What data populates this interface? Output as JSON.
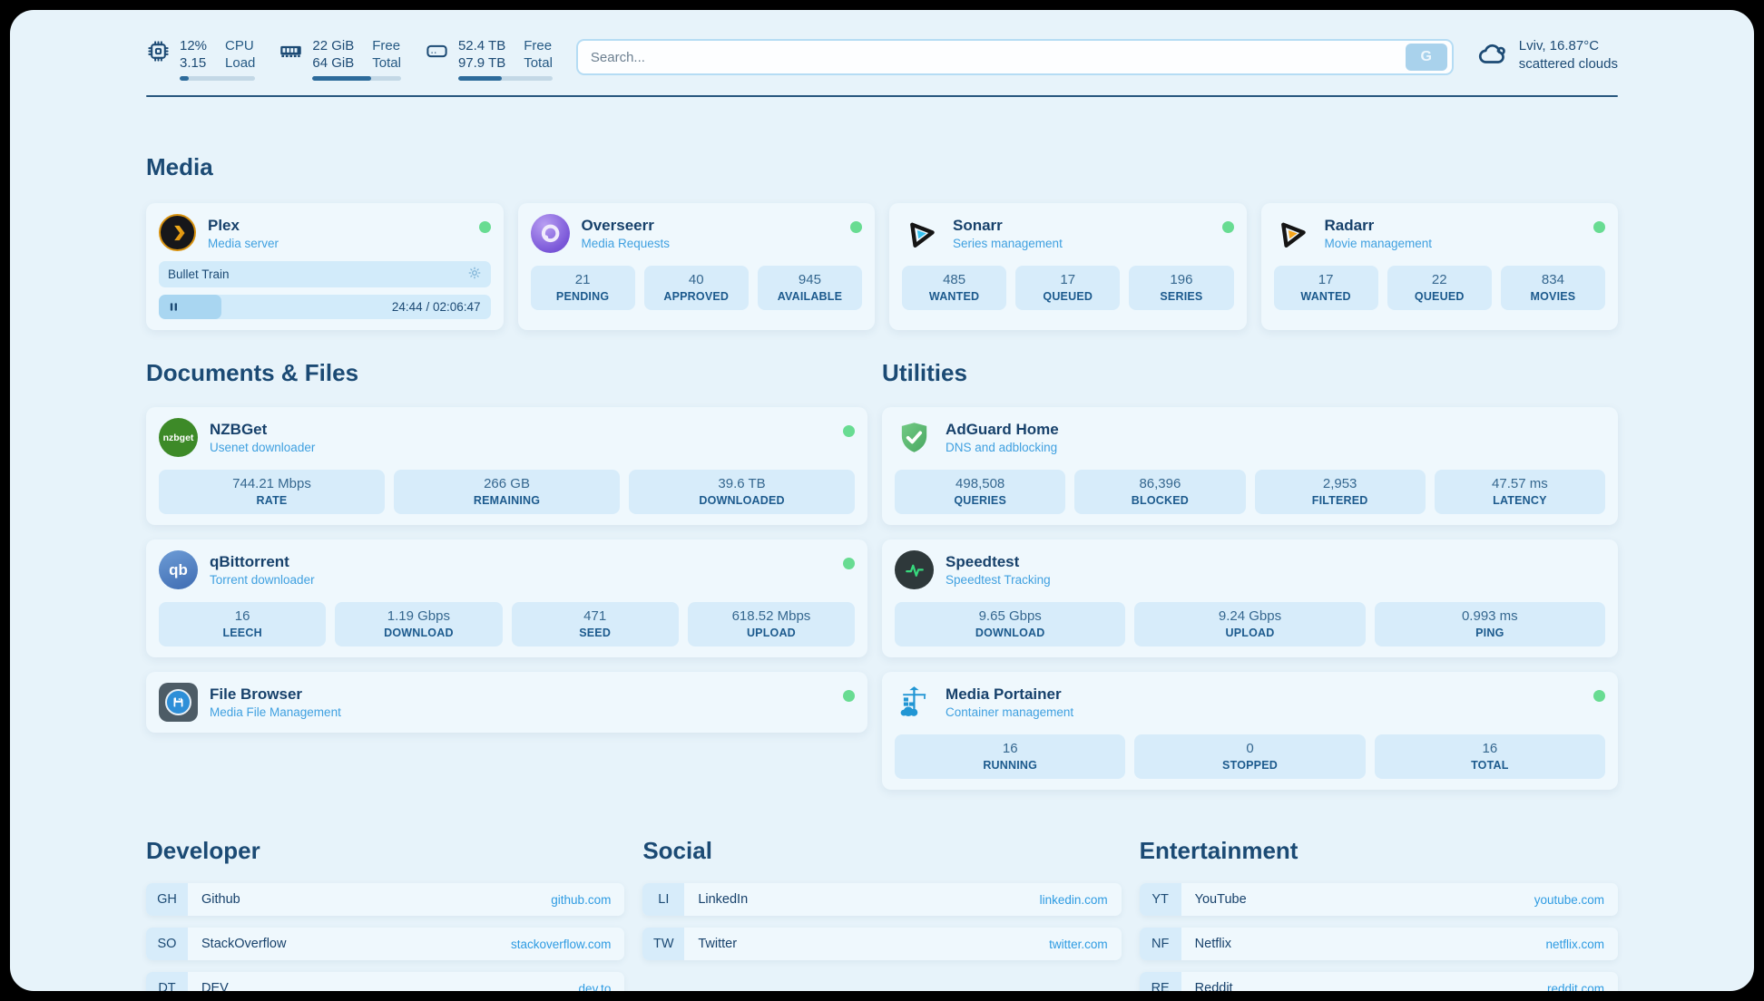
{
  "topbar": {
    "stats": [
      {
        "id": "cpu",
        "values": [
          "12%",
          "3.15"
        ],
        "labels": [
          "CPU",
          "Load"
        ],
        "progress": 12
      },
      {
        "id": "ram",
        "values": [
          "22 GiB",
          "64 GiB"
        ],
        "labels": [
          "Free",
          "Total"
        ],
        "progress": 66
      },
      {
        "id": "disk",
        "values": [
          "52.4 TB",
          "97.9 TB"
        ],
        "labels": [
          "Free",
          "Total"
        ],
        "progress": 46
      }
    ],
    "search": {
      "placeholder": "Search...",
      "button": "G"
    },
    "weather": {
      "location": "Lviv, 16.87°C",
      "condition": "scattered clouds"
    }
  },
  "media": {
    "title": "Media",
    "plex": {
      "name": "Plex",
      "subtitle": "Media server",
      "now_playing": {
        "title": "Bullet Train",
        "time": "24:44 / 02:06:47",
        "progress": 19
      }
    },
    "overseerr": {
      "name": "Overseerr",
      "subtitle": "Media Requests",
      "stats": [
        {
          "value": "21",
          "label": "PENDING"
        },
        {
          "value": "40",
          "label": "APPROVED"
        },
        {
          "value": "945",
          "label": "AVAILABLE"
        }
      ]
    },
    "sonarr": {
      "name": "Sonarr",
      "subtitle": "Series management",
      "stats": [
        {
          "value": "485",
          "label": "WANTED"
        },
        {
          "value": "17",
          "label": "QUEUED"
        },
        {
          "value": "196",
          "label": "SERIES"
        }
      ]
    },
    "radarr": {
      "name": "Radarr",
      "subtitle": "Movie management",
      "stats": [
        {
          "value": "17",
          "label": "WANTED"
        },
        {
          "value": "22",
          "label": "QUEUED"
        },
        {
          "value": "834",
          "label": "MOVIES"
        }
      ]
    }
  },
  "documents": {
    "title": "Documents & Files",
    "nzbget": {
      "name": "NZBGet",
      "subtitle": "Usenet downloader",
      "logo_text": "nzbget",
      "stats": [
        {
          "value": "744.21 Mbps",
          "label": "RATE"
        },
        {
          "value": "266 GB",
          "label": "REMAINING"
        },
        {
          "value": "39.6 TB",
          "label": "DOWNLOADED"
        }
      ]
    },
    "qbittorrent": {
      "name": "qBittorrent",
      "subtitle": "Torrent downloader",
      "logo_text": "qb",
      "stats": [
        {
          "value": "16",
          "label": "LEECH"
        },
        {
          "value": "1.19 Gbps",
          "label": "DOWNLOAD"
        },
        {
          "value": "471",
          "label": "SEED"
        },
        {
          "value": "618.52 Mbps",
          "label": "UPLOAD"
        }
      ]
    },
    "filebrowser": {
      "name": "File Browser",
      "subtitle": "Media File Management"
    }
  },
  "utilities": {
    "title": "Utilities",
    "adguard": {
      "name": "AdGuard Home",
      "subtitle": "DNS and adblocking",
      "stats": [
        {
          "value": "498,508",
          "label": "QUERIES"
        },
        {
          "value": "86,396",
          "label": "BLOCKED"
        },
        {
          "value": "2,953",
          "label": "FILTERED"
        },
        {
          "value": "47.57 ms",
          "label": "LATENCY"
        }
      ]
    },
    "speedtest": {
      "name": "Speedtest",
      "subtitle": "Speedtest Tracking",
      "stats": [
        {
          "value": "9.65 Gbps",
          "label": "DOWNLOAD"
        },
        {
          "value": "9.24 Gbps",
          "label": "UPLOAD"
        },
        {
          "value": "0.993 ms",
          "label": "PING"
        }
      ]
    },
    "portainer": {
      "name": "Media Portainer",
      "subtitle": "Container management",
      "stats": [
        {
          "value": "16",
          "label": "RUNNING"
        },
        {
          "value": "0",
          "label": "STOPPED"
        },
        {
          "value": "16",
          "label": "TOTAL"
        }
      ]
    }
  },
  "bookmarks": [
    {
      "title": "Developer",
      "items": [
        {
          "abbr": "GH",
          "name": "Github",
          "url": "github.com"
        },
        {
          "abbr": "SO",
          "name": "StackOverflow",
          "url": "stackoverflow.com"
        },
        {
          "abbr": "DT",
          "name": "DEV",
          "url": "dev.to"
        }
      ]
    },
    {
      "title": "Social",
      "items": [
        {
          "abbr": "LI",
          "name": "LinkedIn",
          "url": "linkedin.com"
        },
        {
          "abbr": "TW",
          "name": "Twitter",
          "url": "twitter.com"
        }
      ]
    },
    {
      "title": "Entertainment",
      "items": [
        {
          "abbr": "YT",
          "name": "YouTube",
          "url": "youtube.com"
        },
        {
          "abbr": "NF",
          "name": "Netflix",
          "url": "netflix.com"
        },
        {
          "abbr": "RE",
          "name": "Reddit",
          "url": "reddit.com"
        }
      ]
    }
  ],
  "colors": {
    "status_online": "#68dc92",
    "heading": "#1b4a74",
    "subtitle": "#3fa0e0",
    "link": "#2e9be2",
    "page_bg": "#e7f3fa",
    "card_bg": "#eff8fd",
    "stat_box_bg": "#d7ecfa"
  }
}
